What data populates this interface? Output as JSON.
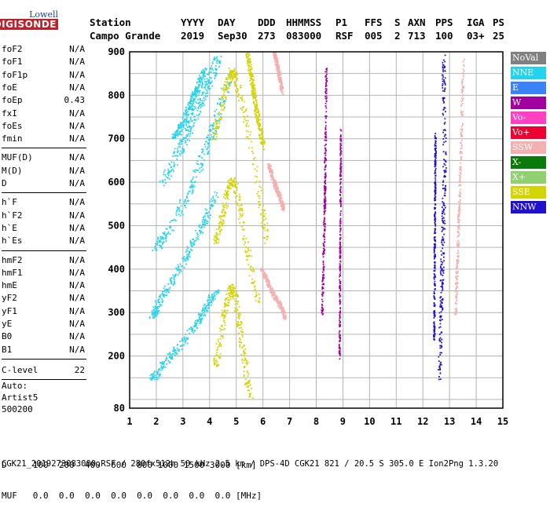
{
  "logo": {
    "brand": "Lowell",
    "name": "DIGISONDE"
  },
  "header": {
    "labels": [
      "Station",
      "YYYY",
      "DAY",
      "DDD",
      "HHMMSS",
      "P1",
      "FFS",
      "S",
      "AXN",
      "PPS",
      "IGA",
      "PS"
    ],
    "values": [
      "Campo Grande",
      "2019",
      "Sep30",
      "273",
      "083000",
      "RSF",
      "005",
      "2",
      "713",
      "100",
      "03+",
      "25"
    ]
  },
  "params": {
    "group1": [
      {
        "name": "foF2",
        "value": "N/A"
      },
      {
        "name": "foF1",
        "value": "N/A"
      },
      {
        "name": "foF1p",
        "value": "N/A"
      },
      {
        "name": "foE",
        "value": "N/A"
      },
      {
        "name": "foEp",
        "value": "0.43"
      },
      {
        "name": "fxI",
        "value": "N/A"
      },
      {
        "name": "foEs",
        "value": "N/A"
      },
      {
        "name": "fmin",
        "value": "N/A"
      }
    ],
    "group2": [
      {
        "name": "MUF(D)",
        "value": "N/A"
      },
      {
        "name": "M(D)",
        "value": "N/A"
      },
      {
        "name": "D",
        "value": "N/A"
      }
    ],
    "group3": [
      {
        "name": "h`F",
        "value": "N/A"
      },
      {
        "name": "h`F2",
        "value": "N/A"
      },
      {
        "name": "h`E",
        "value": "N/A"
      },
      {
        "name": "h`Es",
        "value": "N/A"
      }
    ],
    "group4": [
      {
        "name": "hmF2",
        "value": "N/A"
      },
      {
        "name": "hmF1",
        "value": "N/A"
      },
      {
        "name": "hmE",
        "value": "N/A"
      },
      {
        "name": "yF2",
        "value": "N/A"
      },
      {
        "name": "yF1",
        "value": "N/A"
      },
      {
        "name": "yE",
        "value": "N/A"
      },
      {
        "name": "B0",
        "value": "N/A"
      },
      {
        "name": "B1",
        "value": "N/A"
      }
    ],
    "clevel": {
      "name": "C-level",
      "value": "22"
    }
  },
  "auto": {
    "line1": "Auto:",
    "line2": "Artist5",
    "line3": "500200"
  },
  "legend": [
    {
      "label": "NoVal",
      "color": "#808080"
    },
    {
      "label": "NNE",
      "color": "#22d3ee"
    },
    {
      "label": "E",
      "color": "#3b82f6"
    },
    {
      "label": "W",
      "color": "#a000a0"
    },
    {
      "label": "Vo-",
      "color": "#ff40c0"
    },
    {
      "label": "Vo+",
      "color": "#ee0030"
    },
    {
      "label": "SSW",
      "color": "#f4b0b0"
    },
    {
      "label": "X-",
      "color": "#0a7a0a"
    },
    {
      "label": "X+",
      "color": "#90d070"
    },
    {
      "label": "SSE",
      "color": "#d4d400"
    },
    {
      "label": "NNW",
      "color": "#2010d0"
    }
  ],
  "bottom": {
    "d_line": "D     100  200  400  600  800 1000 1500 3000 [km]",
    "muf_line": "MUF   0.0  0.0  0.0  0.0  0.0  0.0  0.0  0.0 [MHz]"
  },
  "footer": "CGK21_2019273083000.RSF / 280fx512h 50 kHz 2.5 km / DPS-4D CGK21 821 / 20.5 S 305.0 E Ion2Png 1.3.20",
  "chart_data": {
    "type": "scatter",
    "xlim": [
      1,
      15
    ],
    "ylim": [
      80,
      900
    ],
    "xticks": [
      1,
      2,
      3,
      4,
      5,
      6,
      7,
      8,
      9,
      10,
      11,
      12,
      13,
      14,
      15
    ],
    "yticks": [
      80,
      200,
      300,
      400,
      500,
      600,
      700,
      800,
      900
    ],
    "grid": true,
    "series": [
      {
        "name": "NNE",
        "color": "#22d3ee",
        "traces": [
          {
            "x": [
              1.85,
              2.0,
              2.3,
              2.7,
              3.1,
              3.4,
              3.7,
              3.95,
              4.25
            ],
            "y": [
              150,
              160,
              185,
              215,
              240,
              270,
              295,
              325,
              350
            ],
            "width": 0.25
          },
          {
            "x": [
              1.85,
              1.95,
              2.1,
              2.4,
              2.8,
              3.1,
              3.4,
              3.7,
              3.95,
              4.25
            ],
            "y": [
              295,
              305,
              330,
              360,
              395,
              430,
              465,
              500,
              540,
              575
            ],
            "width": 0.25
          },
          {
            "x": [
              1.95,
              2.2,
              2.55,
              2.9,
              3.2,
              3.55,
              3.85,
              4.15,
              4.45,
              4.75
            ],
            "y": [
              445,
              470,
              500,
              540,
              580,
              630,
              680,
              730,
              790,
              850
            ],
            "width": 0.3
          },
          {
            "x": [
              2.2,
              2.55,
              2.95,
              3.3,
              3.65,
              4.0,
              4.3
            ],
            "y": [
              600,
              640,
              690,
              740,
              790,
              840,
              890
            ],
            "width": 0.35
          },
          {
            "x": [
              2.6,
              2.9,
              3.2,
              3.4,
              3.6,
              3.8
            ],
            "y": [
              700,
              730,
              770,
              800,
              830,
              860
            ],
            "width": 0.2
          }
        ]
      },
      {
        "name": "SSE",
        "color": "#d4d400",
        "traces": [
          {
            "x": [
              4.2,
              4.4,
              4.6,
              4.8,
              4.95,
              5.1,
              5.3,
              5.5
            ],
            "y": [
              180,
              250,
              320,
              360,
              340,
              270,
              190,
              100
            ],
            "width": 0.22
          },
          {
            "x": [
              4.2,
              4.45,
              4.65,
              4.8,
              4.95,
              5.15,
              5.45,
              5.8
            ],
            "y": [
              460,
              520,
              580,
              610,
              590,
              520,
              430,
              320
            ],
            "width": 0.22
          },
          {
            "x": [
              4.1,
              4.35,
              4.6,
              4.8,
              4.95,
              5.2,
              5.55,
              5.9,
              6.15
            ],
            "y": [
              700,
              760,
              820,
              860,
              840,
              780,
              680,
              560,
              460
            ],
            "width": 0.22
          },
          {
            "x": [
              5.4,
              5.7,
              6.0
            ],
            "y": [
              900,
              780,
              680
            ],
            "width": 0.15
          }
        ]
      },
      {
        "name": "SSW",
        "color": "#f4b0b0",
        "traces": [
          {
            "x": [
              5.9,
              6.1,
              6.3,
              6.5,
              6.7,
              6.8
            ],
            "y": [
              400,
              380,
              350,
              330,
              310,
              290
            ],
            "width": 0.1
          },
          {
            "x": [
              6.2,
              6.4,
              6.6,
              6.75
            ],
            "y": [
              640,
              600,
              570,
              540
            ],
            "width": 0.1
          },
          {
            "x": [
              6.4,
              6.55,
              6.7
            ],
            "y": [
              900,
              860,
              810
            ],
            "width": 0.1
          },
          {
            "x": [
              13.2,
              13.35,
              13.5
            ],
            "y": [
              300,
              560,
              880
            ],
            "width": 0.08
          }
        ]
      },
      {
        "name": "NNW",
        "color": "#2010d0",
        "traces": [
          {
            "x": [
              12.6,
              12.7,
              12.8,
              12.75
            ],
            "y": [
              150,
              400,
              650,
              890
            ],
            "width": 0.12
          },
          {
            "x": [
              12.4,
              12.45
            ],
            "y": [
              240,
              720
            ],
            "width": 0.05
          }
        ]
      },
      {
        "name": "W",
        "color": "#a000a0",
        "traces": [
          {
            "x": [
              8.2,
              8.3,
              8.35
            ],
            "y": [
              300,
              560,
              860
            ],
            "width": 0.06
          },
          {
            "x": [
              8.85,
              8.9
            ],
            "y": [
              200,
              720
            ],
            "width": 0.04
          }
        ]
      }
    ]
  }
}
